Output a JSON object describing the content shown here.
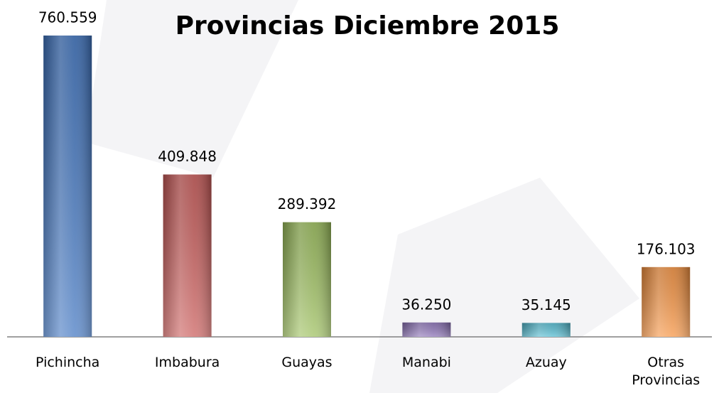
{
  "chart_data": {
    "type": "bar",
    "title": "Provincias Diciembre 2015",
    "categories": [
      "Pichincha",
      "Imbabura",
      "Guayas",
      "Manabi",
      "Azuay",
      "Otras Provincias"
    ],
    "values": [
      760559,
      409848,
      289392,
      36250,
      35145,
      176103
    ],
    "value_labels": [
      "760.559",
      "409.848",
      "289.392",
      "36.250",
      "35.145",
      "176.103"
    ],
    "colors": [
      "#3f74c0",
      "#c95a58",
      "#9cbf5c",
      "#8c72b8",
      "#52bcd2",
      "#f6923f"
    ]
  }
}
